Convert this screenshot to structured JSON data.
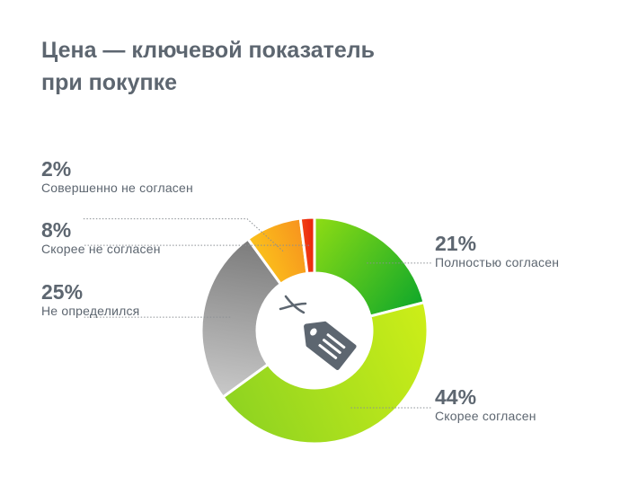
{
  "title": {
    "line1": "Цена — ключевой показатель",
    "line2": "при покупке"
  },
  "chart_data": {
    "type": "pie",
    "variant": "donut",
    "title": "Цена — ключевой показатель при покупке",
    "series": [
      {
        "label": "Полностью согласен",
        "value": 21,
        "value_label": "21%",
        "color_start": "#8fdc14",
        "color_end": "#10a82a"
      },
      {
        "label": "Скорее согласен",
        "value": 44,
        "value_label": "44%",
        "color_start": "#cdee18",
        "color_end": "#8ed321"
      },
      {
        "label": "Не определился",
        "value": 25,
        "value_label": "25%",
        "color_start": "#c9c9c9",
        "color_end": "#7b7b7b"
      },
      {
        "label": "Скорее не согласен",
        "value": 8,
        "value_label": "8%",
        "color_start": "#fbc21b",
        "color_end": "#f7931e"
      },
      {
        "label": "Совершенно не согласен",
        "value": 2,
        "value_label": "2%",
        "color_start": "#f24415",
        "color_end": "#e81e0c"
      }
    ],
    "legend": "callout-labels",
    "center_icon": "price-tag-icon"
  },
  "colors": {
    "text": "#5d6670",
    "leader": "#8a8f94",
    "icon": "#5d6670",
    "gap": "#ffffff"
  }
}
